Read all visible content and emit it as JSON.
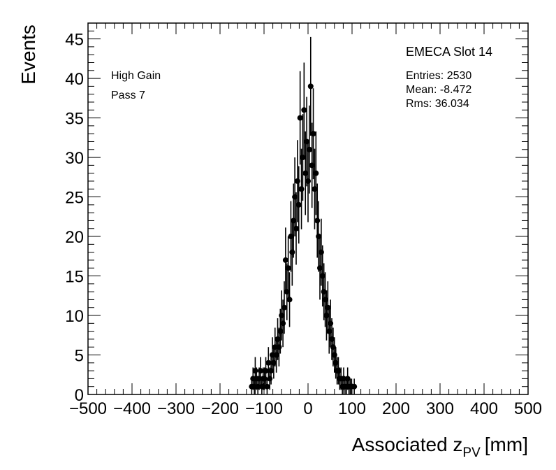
{
  "chart_data": {
    "type": "scatter",
    "title": "",
    "xlabel_main": "Associated z",
    "xlabel_sub": "PV",
    "xlabel_unit": "[mm]",
    "ylabel": "Events",
    "xlim": [
      -500,
      500
    ],
    "ylim": [
      0,
      47
    ],
    "x_ticks": [
      -500,
      -400,
      -300,
      -200,
      -100,
      0,
      100,
      200,
      300,
      400,
      500
    ],
    "x_tick_labels": [
      "−500",
      "−400",
      "−300",
      "−200",
      "−100",
      "0",
      "100",
      "200",
      "300",
      "400",
      "500"
    ],
    "y_ticks": [
      0,
      5,
      10,
      15,
      20,
      25,
      30,
      35,
      40,
      45
    ],
    "y_tick_labels": [
      "0",
      "5",
      "10",
      "15",
      "20",
      "25",
      "30",
      "35",
      "40",
      "45"
    ],
    "grid": false,
    "annotations": {
      "line1": "High Gain",
      "line2": "Pass 7"
    },
    "stats_box": {
      "title": "EMECA Slot 14",
      "entries": "Entries: 2530",
      "mean": "Mean: -8.472",
      "rms": "Rms: 36.034"
    },
    "series": [
      {
        "points": [
          [
            -128,
            1
          ],
          [
            -125,
            2
          ],
          [
            -122,
            1
          ],
          [
            -120,
            3
          ],
          [
            -117,
            2
          ],
          [
            -114,
            1
          ],
          [
            -111,
            2
          ],
          [
            -108,
            3
          ],
          [
            -105,
            1
          ],
          [
            -102,
            2
          ],
          [
            -99,
            2
          ],
          [
            -96,
            3
          ],
          [
            -93,
            1
          ],
          [
            -90,
            4
          ],
          [
            -87,
            2
          ],
          [
            -84,
            3
          ],
          [
            -81,
            5
          ],
          [
            -78,
            4
          ],
          [
            -75,
            6
          ],
          [
            -72,
            5
          ],
          [
            -69,
            7
          ],
          [
            -66,
            6
          ],
          [
            -63,
            8
          ],
          [
            -60,
            10
          ],
          [
            -57,
            9
          ],
          [
            -54,
            11
          ],
          [
            -51,
            17
          ],
          [
            -48,
            13
          ],
          [
            -45,
            16
          ],
          [
            -42,
            12
          ],
          [
            -39,
            20
          ],
          [
            -36,
            18
          ],
          [
            -33,
            22
          ],
          [
            -30,
            25
          ],
          [
            -27,
            21
          ],
          [
            -24,
            27
          ],
          [
            -21,
            24
          ],
          [
            -18,
            35
          ],
          [
            -15,
            26
          ],
          [
            -12,
            30
          ],
          [
            -9,
            36
          ],
          [
            -6,
            28
          ],
          [
            -3,
            32
          ],
          [
            0,
            27
          ],
          [
            3,
            31
          ],
          [
            6,
            39
          ],
          [
            9,
            29
          ],
          [
            12,
            33
          ],
          [
            15,
            26
          ],
          [
            18,
            28
          ],
          [
            21,
            22
          ],
          [
            24,
            20
          ],
          [
            27,
            16
          ],
          [
            30,
            18
          ],
          [
            33,
            15
          ],
          [
            36,
            13
          ],
          [
            39,
            12
          ],
          [
            42,
            10
          ],
          [
            45,
            11
          ],
          [
            48,
            8
          ],
          [
            51,
            9
          ],
          [
            54,
            7
          ],
          [
            57,
            6
          ],
          [
            60,
            5
          ],
          [
            63,
            4
          ],
          [
            66,
            3
          ],
          [
            69,
            3
          ],
          [
            72,
            2
          ],
          [
            75,
            2
          ],
          [
            78,
            1
          ],
          [
            81,
            2
          ],
          [
            84,
            1
          ],
          [
            87,
            1
          ],
          [
            90,
            2
          ],
          [
            93,
            1
          ],
          [
            96,
            1
          ],
          [
            99,
            1
          ],
          [
            105,
            1
          ]
        ]
      }
    ]
  }
}
